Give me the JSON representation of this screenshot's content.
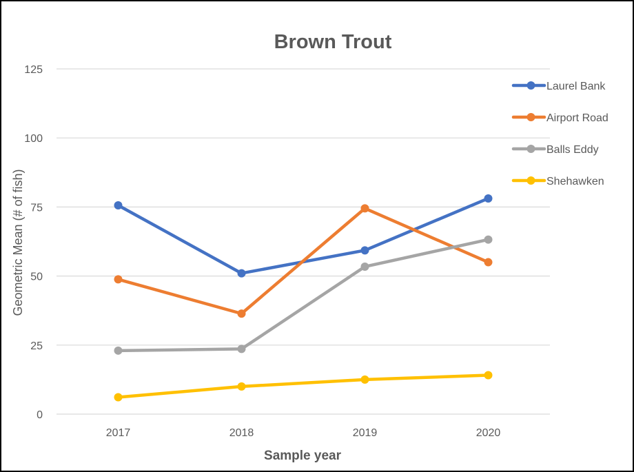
{
  "chart_data": {
    "type": "line",
    "title": "Brown Trout",
    "xlabel": "Sample year",
    "ylabel": "Geometric Mean (# of fish)",
    "categories": [
      "2017",
      "2018",
      "2019",
      "2020"
    ],
    "ylim": [
      0,
      125
    ],
    "yticks": [
      0,
      25,
      50,
      75,
      100,
      125
    ],
    "grid": true,
    "legend_position": "right",
    "series": [
      {
        "name": "Laurel Bank",
        "color": "#4472C4",
        "values": [
          75.6,
          51.0,
          59.3,
          78.1
        ]
      },
      {
        "name": "Airport Road",
        "color": "#ED7D31",
        "values": [
          48.8,
          36.4,
          74.5,
          55.0
        ]
      },
      {
        "name": "Balls Eddy",
        "color": "#A5A5A5",
        "values": [
          23.0,
          23.6,
          53.4,
          63.2
        ]
      },
      {
        "name": "Shehawken",
        "color": "#FFC000",
        "values": [
          6.1,
          10.0,
          12.5,
          14.1
        ]
      }
    ]
  }
}
